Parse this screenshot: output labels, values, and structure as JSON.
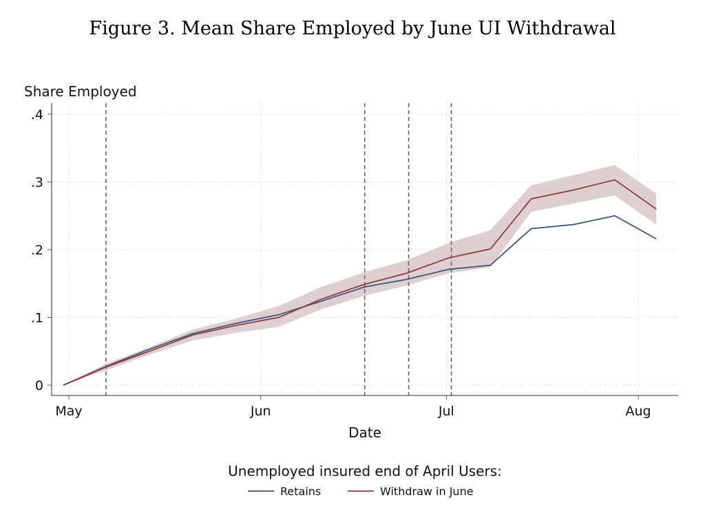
{
  "chart_data": {
    "type": "line",
    "title": "Figure 3. Mean Share Employed by June UI Withdrawal",
    "xlabel": "Date",
    "ylabel": "Share Employed",
    "ylim": [
      0,
      0.4
    ],
    "yticks": [
      {
        "v": 0,
        "label": "0"
      },
      {
        "v": 0.1,
        "label": ".1"
      },
      {
        "v": 0.2,
        "label": ".2"
      },
      {
        "v": 0.3,
        "label": ".3"
      },
      {
        "v": 0.4,
        "label": ".4"
      }
    ],
    "x_unit": "days since May 1",
    "xticks": [
      {
        "v": 0,
        "label": "May"
      },
      {
        "v": 31,
        "label": "Jun"
      },
      {
        "v": 61,
        "label": "Jul"
      },
      {
        "v": 92,
        "label": "Aug"
      }
    ],
    "grid": true,
    "x": [
      -0.9,
      6.1,
      13.0,
      20.0,
      26.9,
      33.9,
      40.8,
      47.8,
      54.5,
      61.4,
      68.1,
      74.7,
      81.5,
      88.2,
      94.9
    ],
    "series": [
      {
        "name": "Retains",
        "color": "#3d5577",
        "values": [
          0,
          0.028,
          0.053,
          0.076,
          0.091,
          0.104,
          0.124,
          0.145,
          0.156,
          0.171,
          0.177,
          0.231,
          0.237,
          0.25,
          0.216
        ]
      },
      {
        "name": "Withdraw in June",
        "color": "#8c3b40",
        "values": [
          0,
          0.027,
          0.05,
          0.074,
          0.088,
          0.1,
          0.127,
          0.149,
          0.165,
          0.188,
          0.201,
          0.275,
          0.288,
          0.303,
          0.26
        ],
        "ci_upper": [
          0,
          0.032,
          0.056,
          0.082,
          0.098,
          0.117,
          0.145,
          0.167,
          0.184,
          0.21,
          0.229,
          0.295,
          0.31,
          0.325,
          0.283
        ],
        "ci_lower": [
          0,
          0.022,
          0.045,
          0.066,
          0.077,
          0.086,
          0.112,
          0.132,
          0.147,
          0.165,
          0.174,
          0.256,
          0.268,
          0.28,
          0.237
        ],
        "ci_color": "#dfcfd1"
      }
    ],
    "vlines": [
      6,
      47.8,
      54.9,
      61.8
    ],
    "legend": {
      "title": "Unemployed insured end of April Users:",
      "placement": "bottom"
    }
  }
}
